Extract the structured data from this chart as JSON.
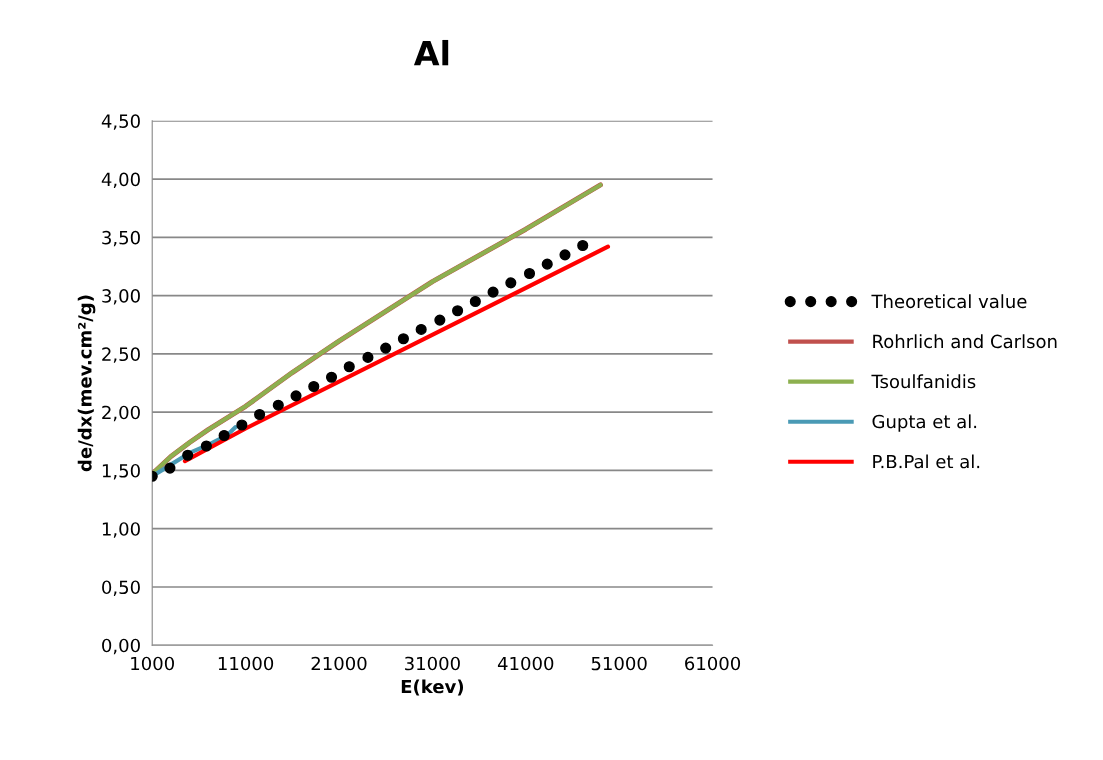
{
  "chart_data": {
    "type": "line",
    "title": "Al",
    "xlabel": "E(kev)",
    "ylabel": "de/dx(mev.cm²/g)",
    "xlim": [
      1000,
      61000
    ],
    "xticks": [
      1000,
      11000,
      21000,
      31000,
      41000,
      51000,
      61000
    ],
    "ylim": [
      0,
      4.5
    ],
    "yticks": [
      {
        "value": 0,
        "label": "0,00"
      },
      {
        "value": 0.5,
        "label": "0,50"
      },
      {
        "value": 1,
        "label": "1,00"
      },
      {
        "value": 1.5,
        "label": "1,50"
      },
      {
        "value": 2,
        "label": "2,00"
      },
      {
        "value": 2.5,
        "label": "2,50"
      },
      {
        "value": 3,
        "label": "3,00"
      },
      {
        "value": 3.5,
        "label": "3,50"
      },
      {
        "value": 4,
        "label": "4,00"
      },
      {
        "value": 4.5,
        "label": "4,50"
      }
    ],
    "grid": "y",
    "legend": "right",
    "series": [
      {
        "name": "Theoretical value",
        "type": "scatter",
        "marker": "circle",
        "color": "#000000",
        "x": [
          1000,
          2900,
          4800,
          6800,
          8700,
          10600,
          12500,
          14500,
          16400,
          18300,
          20200,
          22100,
          24100,
          26000,
          27900,
          29800,
          31800,
          33700,
          35600,
          37500,
          39400,
          41400,
          43300,
          45200,
          47100
        ],
        "values": [
          1.45,
          1.52,
          1.63,
          1.71,
          1.8,
          1.89,
          1.98,
          2.06,
          2.14,
          2.22,
          2.3,
          2.39,
          2.47,
          2.55,
          2.63,
          2.71,
          2.79,
          2.87,
          2.95,
          3.03,
          3.11,
          3.19,
          3.27,
          3.35,
          3.43
        ]
      },
      {
        "name": "Rohrlich and Carlson",
        "color": "#c0504d",
        "x": [
          1000,
          3000,
          5000,
          7000,
          11000,
          16000,
          21000,
          31000,
          41000,
          49000
        ],
        "values": [
          1.47,
          1.62,
          1.74,
          1.85,
          2.05,
          2.34,
          2.61,
          3.12,
          3.57,
          3.95
        ]
      },
      {
        "name": "Tsoulfanidis",
        "color": "#8db04f",
        "x": [
          1000,
          3000,
          5000,
          7000,
          11000,
          16000,
          21000,
          31000,
          41000,
          49000
        ],
        "values": [
          1.47,
          1.62,
          1.74,
          1.85,
          2.05,
          2.34,
          2.61,
          3.12,
          3.57,
          3.95
        ]
      },
      {
        "name": "Gupta et al.",
        "color": "#4a9ab5",
        "x": [
          1000,
          3000,
          5000,
          7000,
          9000,
          9900
        ],
        "values": [
          1.45,
          1.55,
          1.65,
          1.72,
          1.8,
          1.87
        ]
      },
      {
        "name": "P.B.Pal et al.",
        "color": "#ff0000",
        "x": [
          4500,
          11000,
          49800
        ],
        "values": [
          1.58,
          1.86,
          3.42
        ]
      }
    ]
  }
}
